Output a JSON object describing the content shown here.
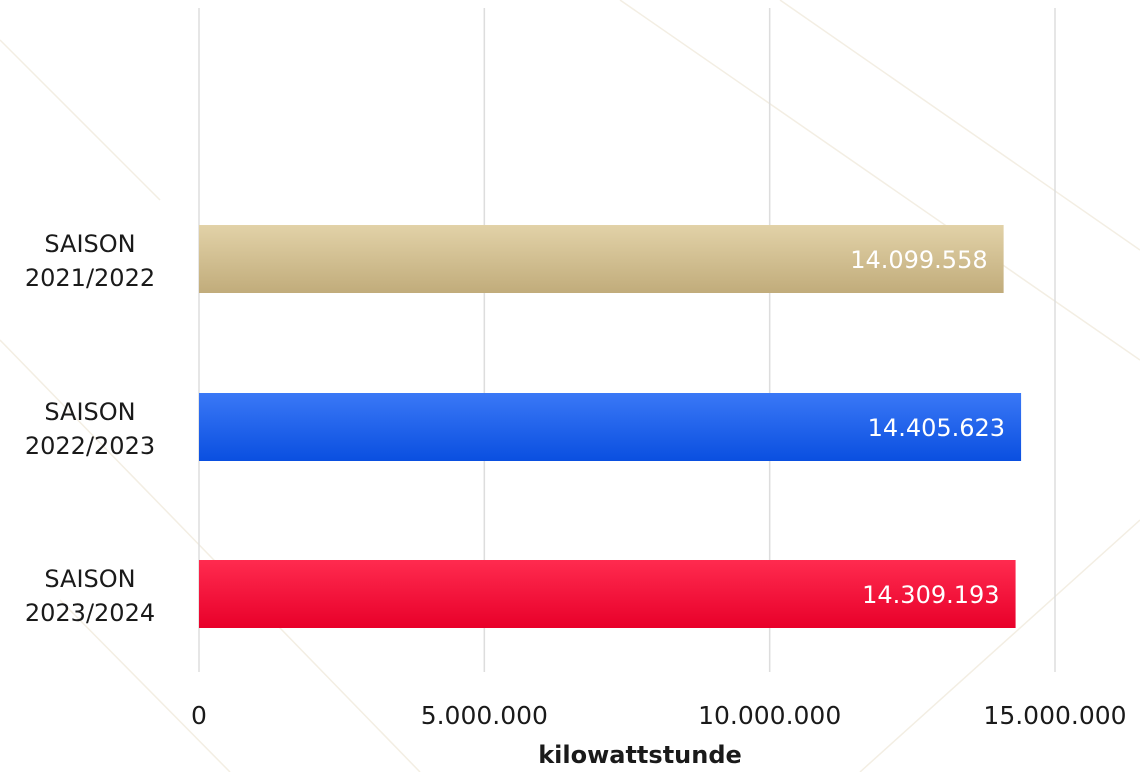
{
  "chart_data": {
    "type": "bar",
    "orientation": "horizontal",
    "categories": [
      [
        "SAISON",
        "2021/2022"
      ],
      [
        "SAISON",
        "2022/2023"
      ],
      [
        "SAISON",
        "2023/2024"
      ]
    ],
    "values": [
      14099558,
      14405623,
      14309193
    ],
    "value_labels": [
      "14.099.558",
      "14.405.623",
      "14.309.193"
    ],
    "bar_colors": [
      {
        "top": "#e2d2a8",
        "bottom": "#c1ac7b"
      },
      {
        "top": "#3a78f6",
        "bottom": "#0a4fe0"
      },
      {
        "top": "#ff2b4f",
        "bottom": "#e8002a"
      }
    ],
    "xlim": [
      0,
      15000000
    ],
    "xticks": [
      0,
      5000000,
      10000000,
      15000000
    ],
    "xtick_labels": [
      "0",
      "5.000.000",
      "10.000.000",
      "15.000.000"
    ],
    "xlabel": "kilowattstunde",
    "ylabel": "",
    "title": "",
    "grid": "vertical",
    "grid_color": "#dddddd",
    "legend": "none"
  }
}
